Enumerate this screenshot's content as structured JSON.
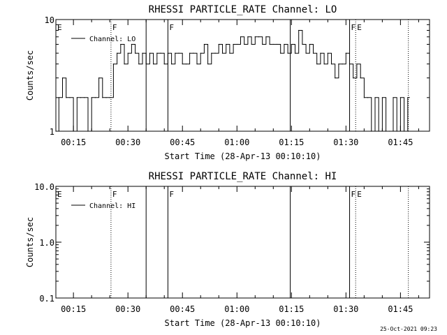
{
  "chart_data": [
    {
      "type": "line",
      "title": "RHESSI PARTICLE_RATE Channel: LO",
      "xlabel": "Start Time (28-Apr-13 00:10:10)",
      "ylabel": "Counts/sec",
      "yscale": "log",
      "ylim": [
        1,
        10
      ],
      "yticks": [
        "1",
        "10"
      ],
      "xlim": [
        "00:10:10",
        "01:53:00"
      ],
      "xticks": [
        "00:15",
        "00:30",
        "00:45",
        "01:00",
        "01:15",
        "01:30",
        "01:45"
      ],
      "legend": {
        "entries": [
          "Channel: LO"
        ],
        "placement": "top-left"
      },
      "grid": false,
      "flag_lines": [
        {
          "time": "00:10:10",
          "label": "E",
          "style": "none"
        },
        {
          "time": "00:25:20",
          "label": "F",
          "style": "dotted"
        },
        {
          "time": "00:35:00",
          "label": "",
          "style": "solid"
        },
        {
          "time": "00:41:00",
          "label": "F",
          "style": "solid"
        },
        {
          "time": "01:14:40",
          "label": "",
          "style": "solid"
        },
        {
          "time": "01:31:00",
          "label": "F",
          "style": "solid"
        },
        {
          "time": "01:32:40",
          "label": "E",
          "style": "dotted"
        },
        {
          "time": "01:47:10",
          "label": "",
          "style": "dotted"
        }
      ],
      "series": [
        {
          "name": "Channel: LO",
          "x": [
            "00:10:10",
            "00:11:00",
            "00:12:00",
            "00:13:00",
            "00:14:00",
            "00:15:00",
            "00:16:00",
            "00:17:00",
            "00:18:00",
            "00:19:00",
            "00:20:00",
            "00:21:00",
            "00:22:00",
            "00:23:00",
            "00:24:00",
            "00:25:00",
            "00:26:00",
            "00:27:00",
            "00:28:00",
            "00:29:00",
            "00:30:00",
            "00:31:00",
            "00:32:00",
            "00:33:00",
            "00:34:00",
            "00:35:00",
            "00:36:00",
            "00:37:00",
            "00:38:00",
            "00:39:00",
            "00:40:00",
            "00:41:00",
            "00:42:00",
            "00:43:00",
            "00:44:00",
            "00:45:00",
            "00:46:00",
            "00:47:00",
            "00:48:00",
            "00:49:00",
            "00:50:00",
            "00:51:00",
            "00:52:00",
            "00:53:00",
            "00:54:00",
            "00:55:00",
            "00:56:00",
            "00:57:00",
            "00:58:00",
            "00:59:00",
            "01:00:00",
            "01:01:00",
            "01:02:00",
            "01:03:00",
            "01:04:00",
            "01:05:00",
            "01:06:00",
            "01:07:00",
            "01:08:00",
            "01:09:00",
            "01:10:00",
            "01:11:00",
            "01:12:00",
            "01:13:00",
            "01:14:00",
            "01:15:00",
            "01:16:00",
            "01:17:00",
            "01:18:00",
            "01:19:00",
            "01:20:00",
            "01:21:00",
            "01:22:00",
            "01:23:00",
            "01:24:00",
            "01:25:00",
            "01:26:00",
            "01:27:00",
            "01:28:00",
            "01:29:00",
            "01:30:00",
            "01:31:00",
            "01:32:00",
            "01:33:00",
            "01:34:00",
            "01:35:00",
            "01:36:00",
            "01:37:00",
            "01:38:00",
            "01:39:00",
            "01:40:00",
            "01:41:00",
            "01:42:00",
            "01:43:00",
            "01:44:00",
            "01:45:00",
            "01:46:00",
            "01:47:00"
          ],
          "y": [
            1,
            2,
            3,
            2,
            2,
            1,
            2,
            2,
            2,
            1,
            2,
            2,
            3,
            2,
            2,
            2,
            4,
            5,
            6,
            4,
            5,
            6,
            5,
            4,
            5,
            4,
            5,
            4,
            5,
            5,
            4,
            5,
            4,
            5,
            5,
            4,
            4,
            5,
            5,
            4,
            5,
            6,
            4,
            5,
            5,
            6,
            5,
            6,
            5,
            6,
            6,
            7,
            6,
            7,
            6,
            7,
            7,
            6,
            7,
            6,
            6,
            6,
            5,
            6,
            5,
            6,
            5,
            8,
            6,
            5,
            6,
            5,
            4,
            5,
            4,
            5,
            4,
            3,
            4,
            4,
            5,
            4,
            3,
            4,
            3,
            2,
            2,
            1,
            2,
            1,
            2,
            1,
            1,
            2,
            1,
            2,
            1,
            2
          ]
        }
      ]
    },
    {
      "type": "line",
      "title": "RHESSI PARTICLE_RATE Channel: HI",
      "xlabel": "Start Time (28-Apr-13 00:10:10)",
      "ylabel": "Counts/sec",
      "yscale": "log",
      "ylim": [
        0.1,
        10
      ],
      "yticks": [
        "0.1",
        "1.0",
        "10.0"
      ],
      "xlim": [
        "00:10:10",
        "01:53:00"
      ],
      "xticks": [
        "00:15",
        "00:30",
        "00:45",
        "01:00",
        "01:15",
        "01:30",
        "01:45"
      ],
      "legend": {
        "entries": [
          "Channel: HI"
        ],
        "placement": "top-left"
      },
      "grid": false,
      "flag_lines": [
        {
          "time": "00:10:10",
          "label": "E",
          "style": "none"
        },
        {
          "time": "00:25:20",
          "label": "F",
          "style": "dotted"
        },
        {
          "time": "00:35:00",
          "label": "",
          "style": "solid"
        },
        {
          "time": "00:41:00",
          "label": "F",
          "style": "solid"
        },
        {
          "time": "01:14:40",
          "label": "",
          "style": "solid"
        },
        {
          "time": "01:31:00",
          "label": "F",
          "style": "solid"
        },
        {
          "time": "01:32:40",
          "label": "E",
          "style": "dotted"
        },
        {
          "time": "01:47:10",
          "label": "",
          "style": "dotted"
        }
      ],
      "series": [
        {
          "name": "Channel: HI",
          "x": [],
          "y": []
        }
      ]
    }
  ],
  "timestamp": "25-Oct-2021 09:23"
}
